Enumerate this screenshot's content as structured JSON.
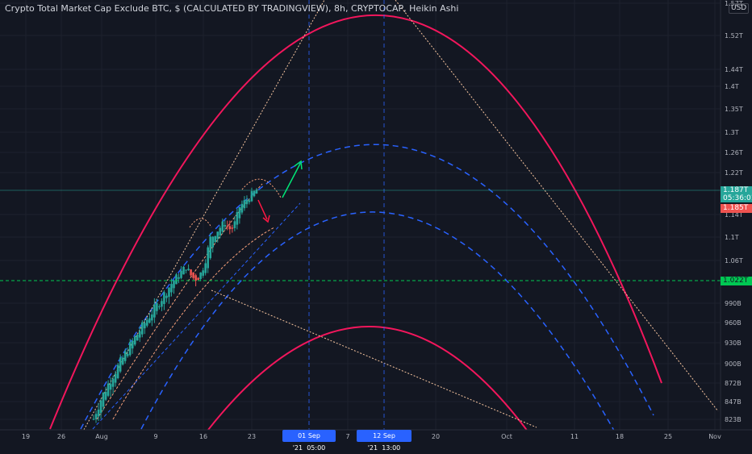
{
  "title": "Crypto Total Market Cap Exclude BTC, $ (CALCULATED BY TRADINGVIEW), 8h, CRYPTOCAP, Heikin Ashi",
  "currency_badge": "USD",
  "y_axis": {
    "ticks": [
      {
        "value": 1570,
        "label": "1.57T"
      },
      {
        "value": 1520,
        "label": "1.52T"
      },
      {
        "value": 1440,
        "label": "1.44T"
      },
      {
        "value": 1400,
        "label": "1.4T"
      },
      {
        "value": 1350,
        "label": "1.35T"
      },
      {
        "value": 1300,
        "label": "1.3T"
      },
      {
        "value": 1260,
        "label": "1.26T"
      },
      {
        "value": 1220,
        "label": "1.22T"
      },
      {
        "value": 1140,
        "label": "1.14T"
      },
      {
        "value": 1100,
        "label": "1.1T"
      },
      {
        "value": 1060,
        "label": "1.06T"
      },
      {
        "value": 990,
        "label": "990B"
      },
      {
        "value": 960,
        "label": "960B"
      },
      {
        "value": 930,
        "label": "930B"
      },
      {
        "value": 900,
        "label": "900B"
      },
      {
        "value": 872,
        "label": "872B"
      },
      {
        "value": 847,
        "label": "847B"
      },
      {
        "value": 823,
        "label": "823B"
      }
    ]
  },
  "x_axis": {
    "ticks": [
      "19",
      "26",
      "Aug",
      "9",
      "16",
      "23",
      "7",
      "20",
      "Oct",
      "11",
      "18",
      "25",
      "Nov"
    ],
    "markers": [
      {
        "date": "01 Sep '21",
        "time": "05:00"
      },
      {
        "date": "12 Sep '21",
        "time": "13:00"
      }
    ]
  },
  "price_tags": {
    "last": {
      "value": "1.187T",
      "countdown": "05:36:01",
      "color": "#26a69a"
    },
    "open": {
      "value": "1.185T",
      "color": "#ef5350"
    },
    "level": {
      "value": "1.022T",
      "color": "#00c853"
    }
  },
  "colors": {
    "background": "#131722",
    "up_candle": "#26a69a",
    "down_candle": "#ef5350",
    "arc_pink": "#f2165c",
    "arc_blue": "#2962ff",
    "guide_line": "#f7c59f",
    "arrow_up": "#00e676",
    "arrow_down": "#ff1744"
  },
  "chart_data": {
    "type": "candlestick",
    "series_style": "Heikin Ashi",
    "symbol": "CRYPTOCAP",
    "interval": "8h",
    "ylim": [
      810,
      1590
    ],
    "candles_summary": {
      "start_value": 823,
      "end_value": 1187
    },
    "horizontal_level": 1022,
    "current_price": 1187
  }
}
